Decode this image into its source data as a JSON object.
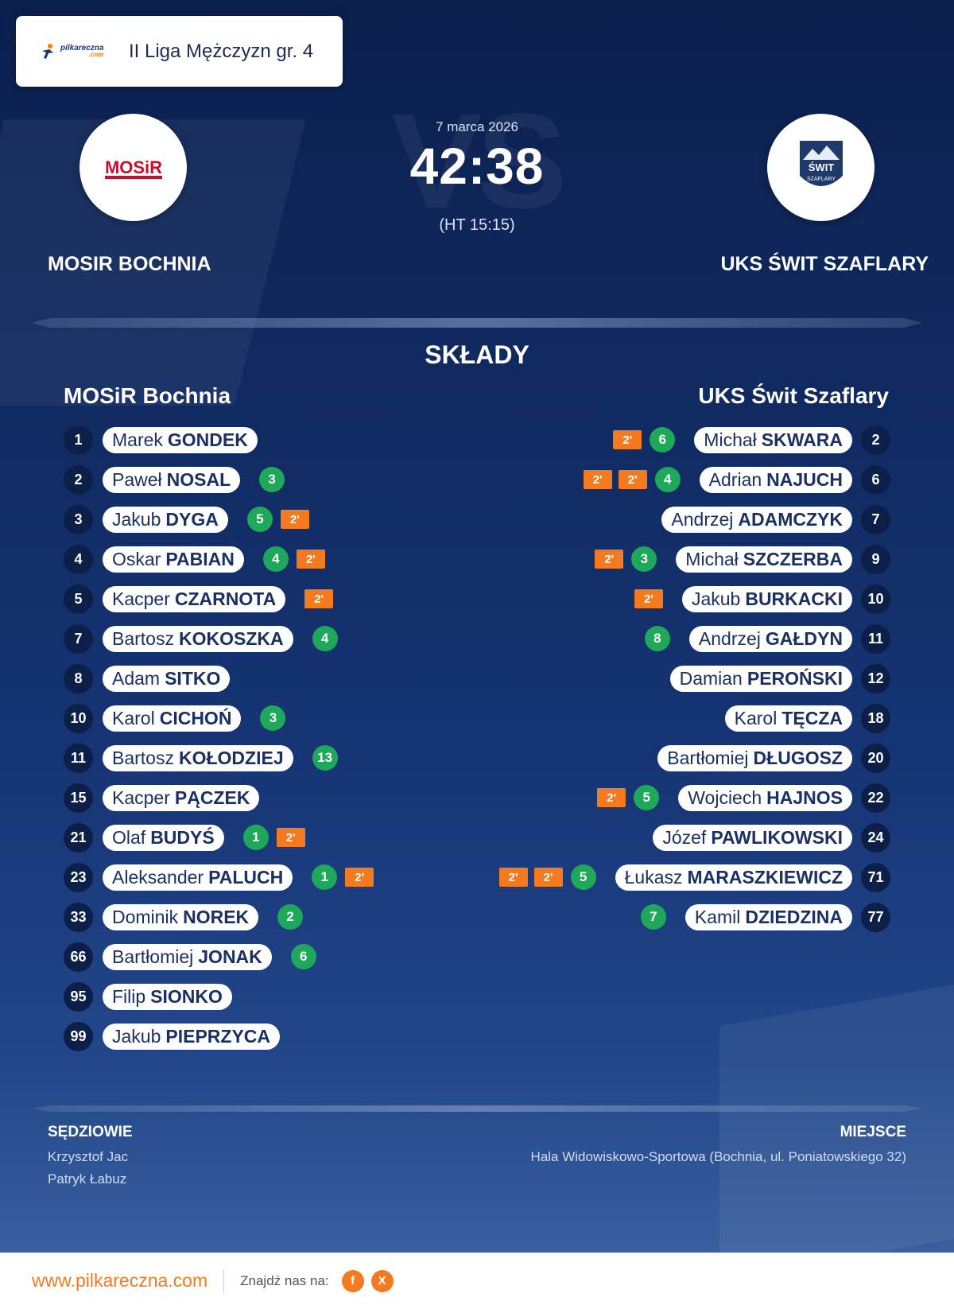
{
  "league": {
    "title": "II Liga Mężczyzn gr. 4",
    "logo_text": "pilkareczna",
    "logo_sub": ".com"
  },
  "match": {
    "date": "7 marca 2026",
    "score": "42:38",
    "halftime": "(HT 15:15)",
    "vs": "VS"
  },
  "home": {
    "name": "MOSIR BOCHNIA",
    "logo_text": "MOSiR"
  },
  "away": {
    "name": "UKS ŚWIT SZAFLARY",
    "logo_text": "ŚWIT",
    "logo_sub": "SZAFLARY"
  },
  "lineups": {
    "title": "SKŁADY",
    "home_title": "MOSiR Bochnia",
    "away_title": "UKS Świt Szaflary",
    "home": [
      {
        "number": "1",
        "first": "Marek",
        "last": "GONDEK",
        "goals": "",
        "suspensions": []
      },
      {
        "number": "2",
        "first": "Paweł",
        "last": "NOSAL",
        "goals": "3",
        "suspensions": []
      },
      {
        "number": "3",
        "first": "Jakub",
        "last": "DYGA",
        "goals": "5",
        "suspensions": [
          "2'"
        ]
      },
      {
        "number": "4",
        "first": "Oskar",
        "last": "PABIAN",
        "goals": "4",
        "suspensions": [
          "2'"
        ]
      },
      {
        "number": "5",
        "first": "Kacper",
        "last": "CZARNOTA",
        "goals": "",
        "suspensions": [
          "2'"
        ]
      },
      {
        "number": "7",
        "first": "Bartosz",
        "last": "KOKOSZKA",
        "goals": "4",
        "suspensions": []
      },
      {
        "number": "8",
        "first": "Adam",
        "last": "SITKO",
        "goals": "",
        "suspensions": []
      },
      {
        "number": "10",
        "first": "Karol",
        "last": "CICHOŃ",
        "goals": "3",
        "suspensions": []
      },
      {
        "number": "11",
        "first": "Bartosz",
        "last": "KOŁODZIEJ",
        "goals": "13",
        "suspensions": []
      },
      {
        "number": "15",
        "first": "Kacper",
        "last": "PĄCZEK",
        "goals": "",
        "suspensions": []
      },
      {
        "number": "21",
        "first": "Olaf",
        "last": "BUDYŚ",
        "goals": "1",
        "suspensions": [
          "2'"
        ]
      },
      {
        "number": "23",
        "first": "Aleksander",
        "last": "PALUCH",
        "goals": "1",
        "suspensions": [
          "2'"
        ]
      },
      {
        "number": "33",
        "first": "Dominik",
        "last": "NOREK",
        "goals": "2",
        "suspensions": []
      },
      {
        "number": "66",
        "first": "Bartłomiej",
        "last": "JONAK",
        "goals": "6",
        "suspensions": []
      },
      {
        "number": "95",
        "first": "Filip",
        "last": "SIONKO",
        "goals": "",
        "suspensions": []
      },
      {
        "number": "99",
        "first": "Jakub",
        "last": "PIEPRZYCA",
        "goals": "",
        "suspensions": []
      }
    ],
    "away": [
      {
        "number": "2",
        "first": "Michał",
        "last": "SKWARA",
        "goals": "6",
        "suspensions": [
          "2'"
        ]
      },
      {
        "number": "6",
        "first": "Adrian",
        "last": "NAJUCH",
        "goals": "4",
        "suspensions": [
          "2'",
          "2'"
        ]
      },
      {
        "number": "7",
        "first": "Andrzej",
        "last": "ADAMCZYK",
        "goals": "",
        "suspensions": []
      },
      {
        "number": "9",
        "first": "Michał",
        "last": "SZCZERBA",
        "goals": "3",
        "suspensions": [
          "2'"
        ]
      },
      {
        "number": "10",
        "first": "Jakub",
        "last": "BURKACKI",
        "goals": "",
        "suspensions": [
          "2'"
        ]
      },
      {
        "number": "11",
        "first": "Andrzej",
        "last": "GAŁDYN",
        "goals": "8",
        "suspensions": []
      },
      {
        "number": "12",
        "first": "Damian",
        "last": "PEROŃSKI",
        "goals": "",
        "suspensions": []
      },
      {
        "number": "18",
        "first": "Karol",
        "last": "TĘCZA",
        "goals": "",
        "suspensions": []
      },
      {
        "number": "20",
        "first": "Bartłomiej",
        "last": "DŁUGOSZ",
        "goals": "",
        "suspensions": []
      },
      {
        "number": "22",
        "first": "Wojciech",
        "last": "HAJNOS",
        "goals": "5",
        "suspensions": [
          "2'"
        ]
      },
      {
        "number": "24",
        "first": "Józef",
        "last": "PAWLIKOWSKI",
        "goals": "",
        "suspensions": []
      },
      {
        "number": "71",
        "first": "Łukasz",
        "last": "MARASZKIEWICZ",
        "goals": "5",
        "suspensions": [
          "2'",
          "2'"
        ]
      },
      {
        "number": "77",
        "first": "Kamil",
        "last": "DZIEDZINA",
        "goals": "7",
        "suspensions": []
      }
    ]
  },
  "officials": {
    "label": "SĘDZIOWIE",
    "names": [
      "Krzysztof Jac",
      "Patryk Łabuz"
    ]
  },
  "venue": {
    "label": "MIEJSCE",
    "text": "Hala Widowiskowo-Sportowa (Bochnia, ul. Poniatowskiego 32)"
  },
  "footer": {
    "url": "www.pilkareczna.com",
    "find_us": "Znajdź nas na:",
    "social": [
      {
        "icon": "facebook-icon",
        "glyph": "f"
      },
      {
        "icon": "x-icon",
        "glyph": "X"
      }
    ]
  },
  "colors": {
    "goal": "#1fa75a",
    "suspension": "#f47a1f",
    "accent": "#f47a1f",
    "background": "#0b1f4d"
  }
}
